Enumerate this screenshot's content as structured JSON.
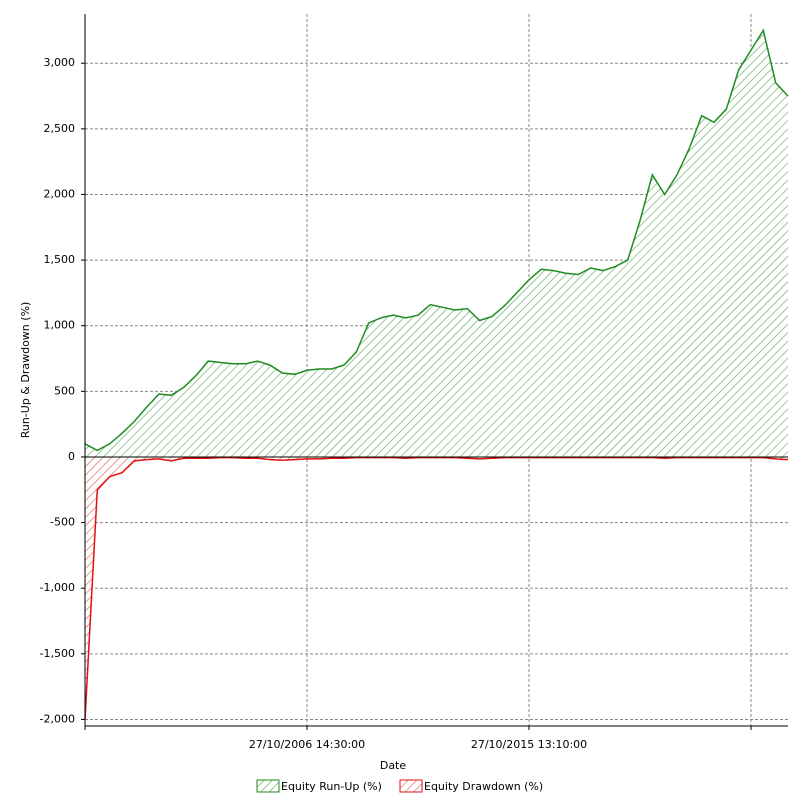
{
  "chart_data": {
    "type": "area",
    "x_label": "Date",
    "y_label": "Run-Up & Drawdown (%)",
    "categories": [
      null,
      null,
      null,
      null,
      null,
      null,
      null,
      null,
      null,
      null,
      null,
      null,
      null,
      null,
      null,
      null,
      null,
      null,
      "27/10/2006 14:30:00",
      null,
      null,
      null,
      null,
      null,
      null,
      null,
      null,
      null,
      null,
      null,
      null,
      null,
      null,
      null,
      null,
      null,
      "27/10/2015 13:10:00",
      null,
      null,
      null,
      null,
      null,
      null,
      null,
      null,
      null,
      null,
      null,
      null,
      null,
      null,
      null,
      null,
      null,
      null,
      null,
      null,
      null
    ],
    "series": [
      {
        "name": "Equity Run-Up (%)",
        "color": "#1e8c1e",
        "values": [
          100,
          50,
          100,
          180,
          270,
          380,
          480,
          470,
          530,
          620,
          730,
          720,
          710,
          710,
          730,
          700,
          640,
          630,
          660,
          670,
          670,
          700,
          800,
          1020,
          1060,
          1080,
          1060,
          1080,
          1160,
          1140,
          1120,
          1130,
          1040,
          1070,
          1150,
          1250,
          1350,
          1430,
          1420,
          1400,
          1390,
          1440,
          1420,
          1450,
          1500,
          1800,
          2150,
          2000,
          2150,
          2350,
          2600,
          2550,
          2650,
          2950,
          3100,
          3250,
          2850,
          2750
        ]
      },
      {
        "name": "Equity Drawdown (%)",
        "color": "#e01010",
        "values": [
          -2000,
          -250,
          -150,
          -120,
          -30,
          -20,
          -15,
          -30,
          -10,
          -10,
          -10,
          -5,
          -5,
          -10,
          -10,
          -20,
          -25,
          -20,
          -15,
          -15,
          -10,
          -10,
          -5,
          -5,
          -5,
          -5,
          -10,
          -5,
          -5,
          -5,
          -5,
          -10,
          -15,
          -10,
          -5,
          -5,
          -5,
          -5,
          -5,
          -5,
          -5,
          -5,
          -5,
          -5,
          -5,
          -5,
          -5,
          -10,
          -5,
          -5,
          -5,
          -5,
          -5,
          -5,
          -5,
          -5,
          -15,
          -20
        ]
      }
    ],
    "ylim": [
      -2050,
      3375
    ],
    "yticks": [
      {
        "value": -2000,
        "label": "-2,000"
      },
      {
        "value": -1500,
        "label": "-1,500"
      },
      {
        "value": -1000,
        "label": "-1,000"
      },
      -500,
      0,
      500,
      {
        "value": 1000,
        "label": "1,000"
      },
      {
        "value": 1500,
        "label": "1,500"
      },
      {
        "value": 2000,
        "label": "2,000"
      },
      {
        "value": 2500,
        "label": "2,500"
      },
      {
        "value": 3000,
        "label": "3,000"
      }
    ],
    "grid": true
  }
}
